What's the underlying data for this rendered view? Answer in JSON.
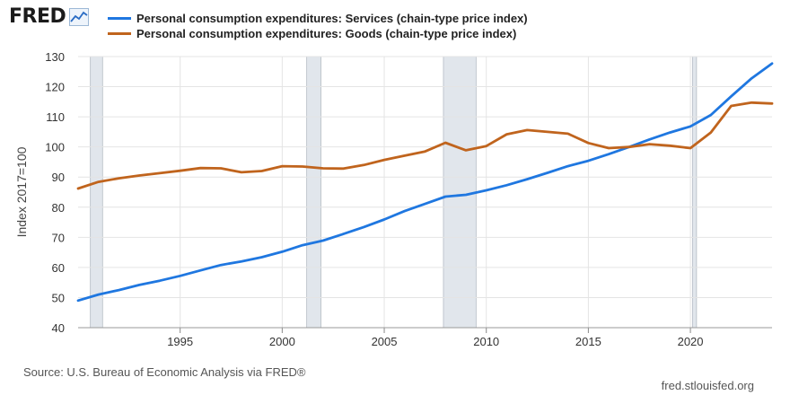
{
  "header": {
    "logo_text": "FRED",
    "logo_icon": "line-chart-icon"
  },
  "source_text": "Source: U.S. Bureau of Economic Analysis via FRED®",
  "site_text": "fred.stlouisfed.org",
  "chart_data": {
    "type": "line",
    "title": "",
    "xlabel": "",
    "ylabel": "Index 2017=100",
    "xlim": [
      1990,
      2024
    ],
    "ylim": [
      40,
      130
    ],
    "yticks": [
      40,
      50,
      60,
      70,
      80,
      90,
      100,
      110,
      120,
      130
    ],
    "xticks": [
      1995,
      2000,
      2005,
      2010,
      2015,
      2020
    ],
    "grid": true,
    "legend_position": "top-left",
    "recessions": [
      [
        1990.6,
        1991.2
      ],
      [
        2001.2,
        2001.9
      ],
      [
        2007.9,
        2009.5
      ],
      [
        2020.1,
        2020.3
      ]
    ],
    "series": [
      {
        "name": "Personal consumption expenditures: Services (chain-type price index)",
        "color": "#1f77e0",
        "x": [
          1990,
          1991,
          1992,
          1993,
          1994,
          1995,
          1996,
          1997,
          1998,
          1999,
          2000,
          2001,
          2002,
          2003,
          2004,
          2005,
          2006,
          2007,
          2008,
          2009,
          2010,
          2011,
          2012,
          2013,
          2014,
          2015,
          2016,
          2017,
          2018,
          2019,
          2020,
          2021,
          2022,
          2023,
          2024
        ],
        "values": [
          49,
          51,
          52.5,
          54.2,
          55.6,
          57.2,
          59,
          60.8,
          62,
          63.4,
          65.2,
          67.4,
          68.9,
          71.1,
          73.4,
          75.9,
          78.7,
          81.1,
          83.5,
          84.1,
          85.6,
          87.3,
          89.3,
          91.4,
          93.6,
          95.4,
          97.6,
          100,
          102.5,
          104.8,
          106.8,
          110.6,
          116.8,
          122.8,
          127.7
        ]
      },
      {
        "name": "Personal consumption expenditures: Goods (chain-type price index)",
        "color": "#c0641d",
        "x": [
          1990,
          1991,
          1992,
          1993,
          1994,
          1995,
          1996,
          1997,
          1998,
          1999,
          2000,
          2001,
          2002,
          2003,
          2004,
          2005,
          2006,
          2007,
          2008,
          2009,
          2010,
          2011,
          2012,
          2013,
          2014,
          2015,
          2016,
          2017,
          2018,
          2019,
          2020,
          2021,
          2022,
          2023,
          2024
        ],
        "values": [
          86.2,
          88.4,
          89.6,
          90.5,
          91.3,
          92.1,
          93,
          92.9,
          91.6,
          92,
          93.6,
          93.5,
          92.9,
          92.8,
          94,
          95.7,
          97.1,
          98.5,
          101.4,
          98.9,
          100.3,
          104.2,
          105.6,
          105,
          104.4,
          101.3,
          99.6,
          100,
          100.9,
          100.4,
          99.6,
          104.8,
          113.6,
          114.7,
          114.4
        ]
      }
    ]
  }
}
